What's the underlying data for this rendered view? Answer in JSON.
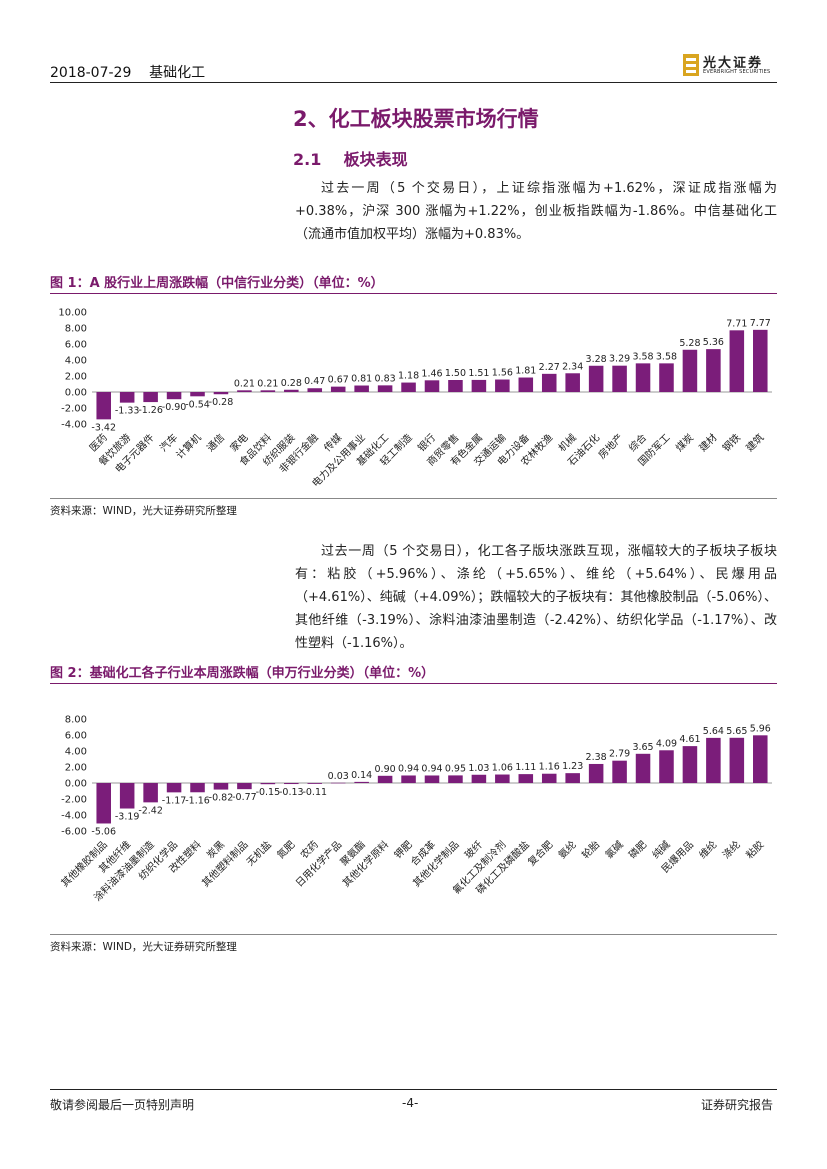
{
  "header": {
    "date_title": "2018-07-29    基础化工",
    "logo_cn": "光大证券",
    "logo_en": "EVERBRIGHT SECURITIES"
  },
  "section": {
    "title": "2、化工板块股票市场行情",
    "subtitle": "2.1    板块表现"
  },
  "para1": "过去一周（5 个交易日），上证综指涨幅为+1.62%，深证成指涨幅为+0.38%，沪深 300 涨幅为+1.22%，创业板指跌幅为-1.86%。中信基础化工（流通市值加权平均）涨幅为+0.83%。",
  "fig1": {
    "title": "图 1：A 股行业上周涨跌幅（中信行业分类）（单位：%）",
    "source": "资料来源：WIND，光大证券研究所整理"
  },
  "para2": "过去一周（5 个交易日），化工各子版块涨跌互现，涨幅较大的子板块子板块有：粘胶（+5.96%）、涤纶（+5.65%）、维纶（+5.64%）、民爆用品（+4.61%）、纯碱（+4.09%）；跌幅较大的子板块有：其他橡胶制品（-5.06%）、其他纤维（-3.19%）、涂料油漆油墨制造（-2.42%）、纺织化学品（-1.17%）、改性塑料（-1.16%）。",
  "fig2": {
    "title": "图 2：基础化工各子行业本周涨跌幅（申万行业分类）（单位：%）",
    "source": "资料来源：WIND，光大证券研究所整理"
  },
  "footer": {
    "left": "敬请参阅最后一页特别声明",
    "center": "-4-",
    "right": "证券研究报告"
  },
  "colors": {
    "accent": "#7a1a6b",
    "bar": "#7b1d7a"
  },
  "chart_data": [
    {
      "type": "bar",
      "title": "图 1：A 股行业上周涨跌幅（中信行业分类）（单位：%）",
      "xlabel": "",
      "ylabel": "",
      "ylim": [
        -4.0,
        10.0
      ],
      "yticks": [
        "10.00",
        "8.00",
        "6.00",
        "4.00",
        "2.00",
        "0.00",
        "-2.00",
        "-4.00"
      ],
      "categories": [
        "医药",
        "餐饮旅游",
        "电子元器件",
        "汽车",
        "计算机",
        "通信",
        "家电",
        "食品饮料",
        "纺织服装",
        "非银行金融",
        "传媒",
        "电力及公用事业",
        "基础化工",
        "轻工制造",
        "银行",
        "商贸零售",
        "有色金属",
        "交通运输",
        "电力设备",
        "农林牧渔",
        "机械",
        "石油石化",
        "房地产",
        "综合",
        "国防军工",
        "煤炭",
        "建材",
        "钢铁",
        "建筑"
      ],
      "values": [
        -3.42,
        -1.33,
        -1.26,
        -0.9,
        -0.54,
        -0.28,
        0.21,
        0.21,
        0.28,
        0.47,
        0.67,
        0.81,
        0.83,
        1.18,
        1.46,
        1.5,
        1.51,
        1.56,
        1.81,
        2.27,
        2.34,
        3.28,
        3.29,
        3.58,
        3.58,
        5.28,
        5.36,
        7.71,
        7.77
      ],
      "labels": [
        "-3.42",
        "-1.33",
        "-1.26",
        "-0.90",
        "-0.54",
        "-0.28",
        "0.21",
        "0.21",
        "0.28",
        "0.47",
        "0.67",
        "0.81",
        "0.83",
        "1.18",
        "1.46",
        "1.50",
        "1.51",
        "1.56",
        "1.81",
        "2.27",
        "2.34",
        "3.28",
        "3.29",
        "3.58",
        "3.58",
        "5.28",
        "5.36",
        "7.71",
        "7.77"
      ]
    },
    {
      "type": "bar",
      "title": "图 2：基础化工各子行业本周涨跌幅（申万行业分类）（单位：%）",
      "xlabel": "",
      "ylabel": "",
      "ylim": [
        -6.0,
        8.0
      ],
      "yticks": [
        "8.00",
        "6.00",
        "4.00",
        "2.00",
        "0.00",
        "-2.00",
        "-4.00",
        "-6.00"
      ],
      "categories": [
        "其他橡胶制品",
        "其他纤维",
        "涂料油漆油墨制造",
        "纺织化学品",
        "改性塑料",
        "炭黑",
        "其他塑料制品",
        "无机盐",
        "氮肥",
        "农药",
        "日用化学产品",
        "聚氨酯",
        "其他化学原料",
        "钾肥",
        "合成革",
        "其他化学制品",
        "玻纤",
        "氟化工及制冷剂",
        "磷化工及磷酸盐",
        "复合肥",
        "氨纶",
        "轮胎",
        "氯碱",
        "磷肥",
        "纯碱",
        "民爆用品",
        "维纶",
        "涤纶",
        "粘胶"
      ],
      "values": [
        -5.06,
        -3.19,
        -2.42,
        -1.17,
        -1.16,
        -0.82,
        -0.77,
        -0.15,
        -0.13,
        -0.11,
        0.03,
        0.14,
        0.9,
        0.94,
        0.94,
        0.95,
        1.03,
        1.06,
        1.11,
        1.16,
        1.23,
        2.38,
        2.79,
        3.65,
        4.09,
        4.61,
        5.64,
        5.65,
        5.96
      ],
      "labels": [
        "-5.06",
        "-3.19",
        "-2.42",
        "-1.17",
        "-1.16",
        "-0.82",
        "-0.77",
        "-0.15",
        "-0.13",
        "-0.11",
        "0.03",
        "0.14",
        "0.90",
        "0.94",
        "0.94",
        "0.95",
        "1.03",
        "1.06",
        "1.11",
        "1.16",
        "1.23",
        "2.38",
        "2.79",
        "3.65",
        "4.09",
        "4.61",
        "5.64",
        "5.65",
        "5.96"
      ]
    }
  ]
}
